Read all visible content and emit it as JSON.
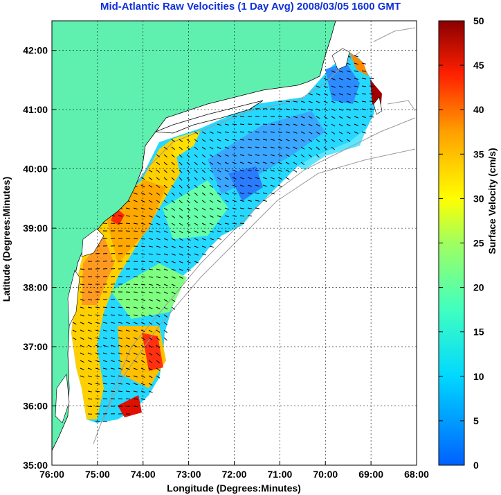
{
  "title": "Mid-Atlantic Raw Velocities (1 Day Avg) 2008/03/05 1600 GMT",
  "map": {
    "xlabel": "Longitude (Degrees:Minutes)",
    "ylabel": "Latitude (Degrees:Minutes)",
    "x_ticks": [
      "76:00",
      "75:00",
      "74:00",
      "73:00",
      "72:00",
      "71:00",
      "70:00",
      "69:00",
      "68:00"
    ],
    "y_ticks": [
      "42:00",
      "41:00",
      "40:00",
      "39:00",
      "38:00",
      "37:00",
      "36:00",
      "35:00"
    ],
    "lon_range": [
      -76,
      -68
    ],
    "lat_range": [
      35,
      42.5
    ],
    "land_color": "#5ff0b0",
    "grid": true
  },
  "colorbar": {
    "label": "Surface Velocity (cm/s)",
    "ticks": [
      "50",
      "45",
      "40",
      "35",
      "30",
      "25",
      "20",
      "15",
      "10",
      "5",
      "0"
    ],
    "range": [
      0,
      50
    ]
  }
}
